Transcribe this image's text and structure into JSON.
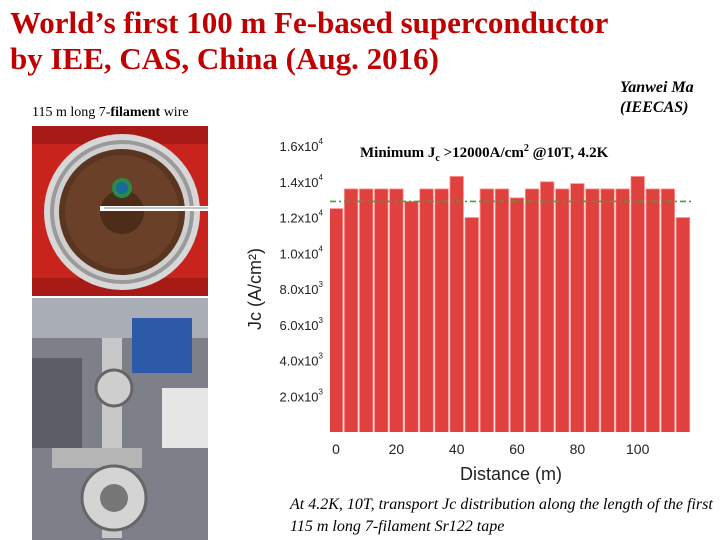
{
  "title": {
    "line1": "World’s first 100 m Fe-based superconductor",
    "line2": "by IEE, CAS, China (Aug. 2016)"
  },
  "author": {
    "name": "Yanwei Ma",
    "affiliation": "(IEECAS)"
  },
  "wire_caption": {
    "prefix": "115 m long 7-",
    "bold": "filament",
    "suffix": " wire"
  },
  "min_jc": {
    "prefix": "Minimum J",
    "sub": "c",
    "middle": " >12000A/cm",
    "sup": "2",
    "suffix": " @10T, 4.2K"
  },
  "bottom_caption": "At 4.2K, 10T, transport Jc distribution along the length of the first 115 m long 7-filament Sr122 tape",
  "colors": {
    "title": "#c00000",
    "bar": "#e0403e",
    "bar_outline": "#ff9999",
    "reference_line": "#33aa33"
  },
  "chart_data": {
    "type": "bar",
    "xlabel": "Distance (m)",
    "ylabel": "Jc (A/cm²)",
    "xlim": [
      -2,
      118
    ],
    "ylim": [
      0,
      16000
    ],
    "x_ticks": [
      0,
      20,
      40,
      60,
      80,
      100
    ],
    "y_ticks": [
      {
        "value": 2000,
        "mantissa": "2.0x10",
        "exp": "3"
      },
      {
        "value": 4000,
        "mantissa": "4.0x10",
        "exp": "3"
      },
      {
        "value": 6000,
        "mantissa": "6.0x10",
        "exp": "3"
      },
      {
        "value": 8000,
        "mantissa": "8.0x10",
        "exp": "3"
      },
      {
        "value": 10000,
        "mantissa": "1.0x10",
        "exp": "4"
      },
      {
        "value": 12000,
        "mantissa": "1.2x10",
        "exp": "4"
      },
      {
        "value": 14000,
        "mantissa": "1.4x10",
        "exp": "4"
      },
      {
        "value": 16000,
        "mantissa": "1.6x10",
        "exp": "4"
      }
    ],
    "bar_width": 4.5,
    "x": [
      0,
      5,
      10,
      15,
      20,
      25,
      30,
      35,
      40,
      45,
      50,
      55,
      60,
      65,
      70,
      75,
      80,
      85,
      90,
      95,
      100,
      105,
      110,
      115
    ],
    "values": [
      12500,
      13600,
      13600,
      13600,
      13600,
      12900,
      13600,
      13600,
      14300,
      12000,
      13600,
      13600,
      13100,
      13600,
      14000,
      13600,
      13900,
      13600,
      13600,
      13600,
      14300,
      13600,
      13600,
      12000
    ],
    "reference_value": 12900,
    "grid": false
  }
}
